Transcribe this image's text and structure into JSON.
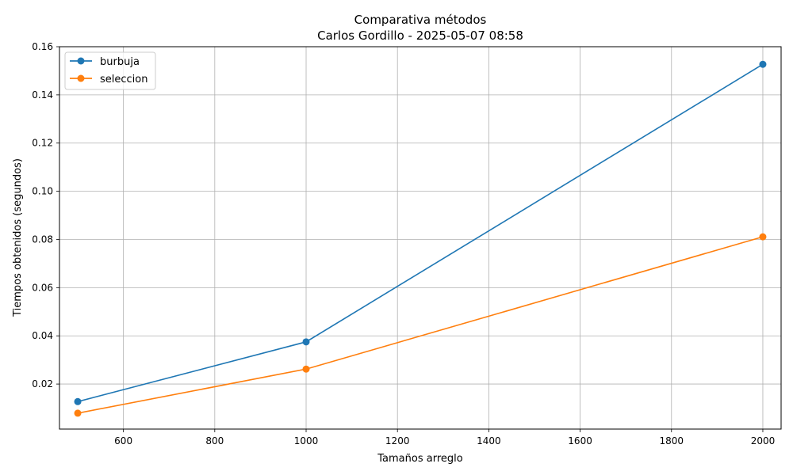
{
  "chart_data": {
    "type": "line",
    "title": "Comparativa métodos",
    "subtitle": "Carlos Gordillo - 2025-05-07 08:58",
    "xlabel": "Tamaños arreglo",
    "ylabel": "Tiempos obtenidos (segundos)",
    "x": [
      500,
      1000,
      2000
    ],
    "xlim": [
      460,
      2040
    ],
    "ylim": [
      0.0013,
      0.16
    ],
    "xticks": [
      600,
      800,
      1000,
      1200,
      1400,
      1600,
      1800,
      2000
    ],
    "yticks": [
      0.02,
      0.04,
      0.06,
      0.08,
      0.1,
      0.12,
      0.14,
      0.16
    ],
    "ytick_labels": [
      "0.02",
      "0.04",
      "0.06",
      "0.08",
      "0.10",
      "0.12",
      "0.14",
      "0.16"
    ],
    "grid": true,
    "legend_position": "top-left",
    "series": [
      {
        "name": "burbuja",
        "color": "#1f77b4",
        "values": [
          0.0127,
          0.0375,
          0.1527
        ]
      },
      {
        "name": "seleccion",
        "color": "#ff7f0e",
        "values": [
          0.0079,
          0.0262,
          0.0811
        ]
      }
    ]
  }
}
